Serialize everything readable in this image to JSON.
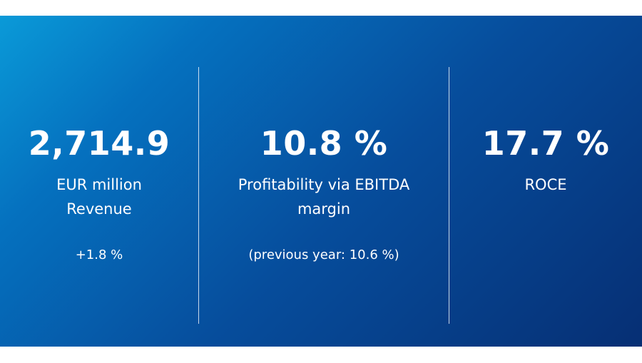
{
  "kpis": [
    {
      "value": "2,714.9",
      "label_line1": "EUR million",
      "label_line2": "Revenue",
      "note": "+1.8 %"
    },
    {
      "value": "10.8 %",
      "label_line1": "Profitability via EBITDA",
      "label_line2": "margin",
      "note": "(previous year: 10.6 %)"
    },
    {
      "value": "17.7 %",
      "label_line1": "ROCE",
      "label_line2": "",
      "note": ""
    }
  ],
  "colors": {
    "gradient_start": "#0a9ad8",
    "gradient_end": "#062f74",
    "text": "#ffffff"
  }
}
